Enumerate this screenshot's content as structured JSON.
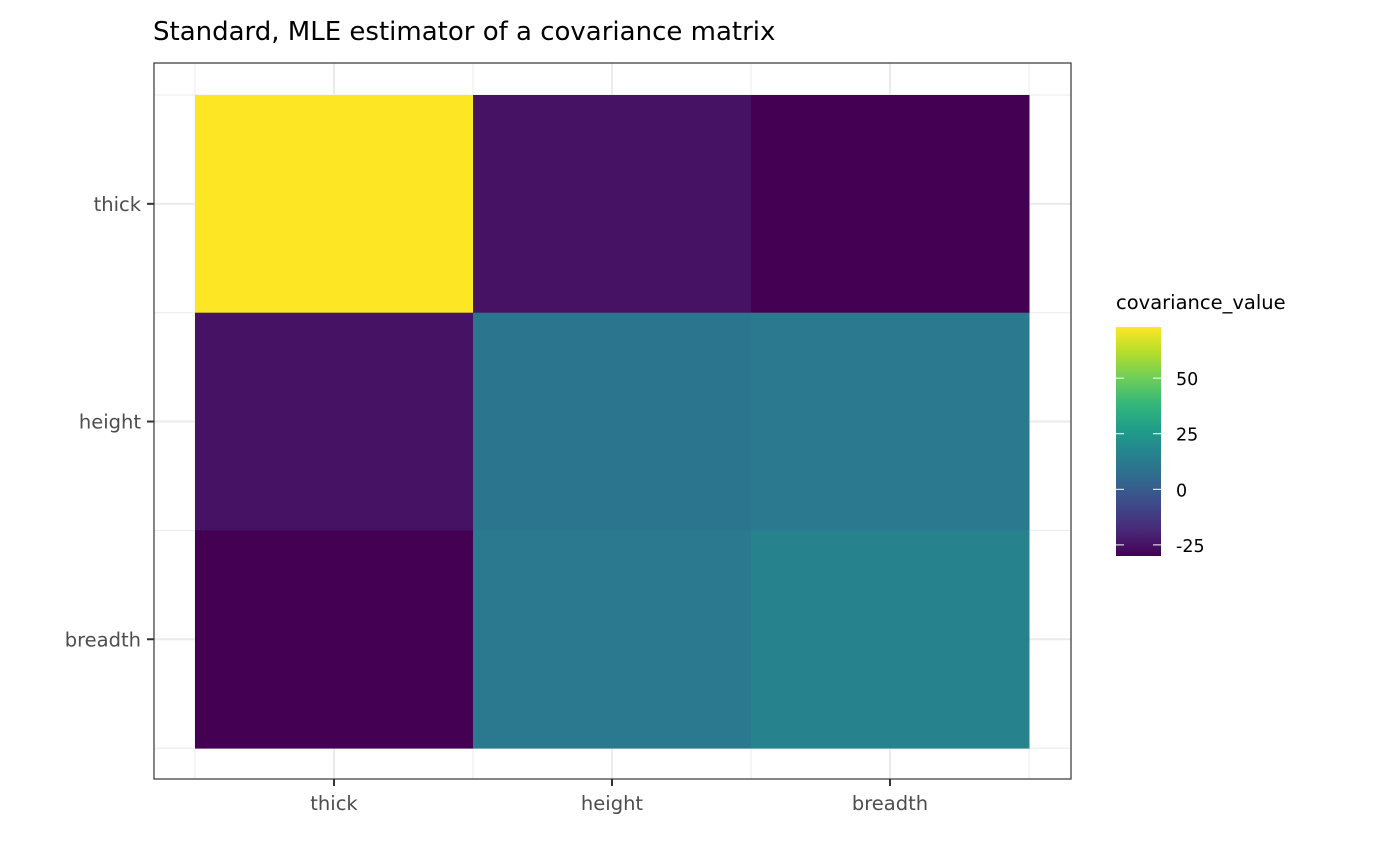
{
  "chart_data": {
    "type": "heatmap",
    "title": "Standard, MLE estimator of a covariance matrix",
    "xlabel": "",
    "ylabel": "",
    "x_categories": [
      "thick",
      "height",
      "breadth"
    ],
    "y_categories": [
      "thick",
      "height",
      "breadth"
    ],
    "values": [
      [
        73,
        -25,
        -30
      ],
      [
        -25,
        10,
        12
      ],
      [
        -30,
        12,
        16
      ]
    ],
    "legend": {
      "title": "covariance_value",
      "placement": "right",
      "ticks": [
        50,
        25,
        0,
        -25
      ],
      "tick_labels": [
        "50",
        "25",
        "0",
        "-25"
      ],
      "range": [
        -30,
        73
      ],
      "palette": "viridis"
    },
    "grid": true,
    "colors": {
      "panel_border": "#333333",
      "grid": "#ebebeb",
      "axis_text": "#4d4d4d",
      "title": "#000000"
    }
  }
}
